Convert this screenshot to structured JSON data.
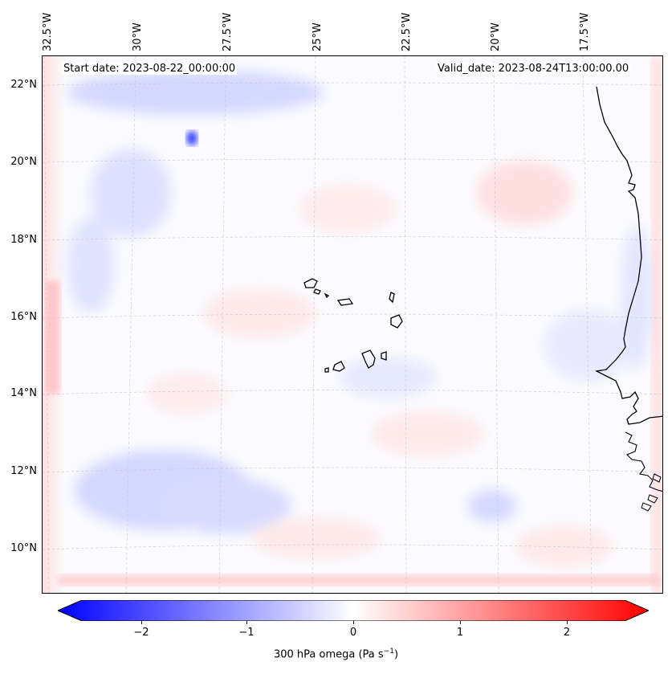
{
  "map": {
    "header_left": "Start date: 2023-08-22_00:00:00",
    "header_right": "Valid_date: 2023-08-24T13:00:00.00",
    "lon_labels": [
      "32.5°W",
      "30°W",
      "27.5°W",
      "25°W",
      "22.5°W",
      "20°W",
      "17.5°W"
    ],
    "lat_labels": [
      "22°N",
      "20°N",
      "18°N",
      "16°N",
      "14°N",
      "12°N",
      "10°N"
    ],
    "extent": {
      "lon_min": -32.9,
      "lon_max": -15.6,
      "lat_min": 8.9,
      "lat_max": 22.7
    },
    "colors": {
      "negative": "#0000ff",
      "zero": "#ffffff",
      "positive": "#ff0000",
      "coast": "#000000",
      "grid": "#c8c8c8"
    }
  },
  "colorbar": {
    "label_main": "300 hPa omega (Pa s",
    "label_exp": "−1",
    "label_end": ")",
    "ticks": [
      "−2",
      "−1",
      "0",
      "1",
      "2"
    ],
    "tick_values": [
      -2,
      -1,
      0,
      1,
      2
    ],
    "vmin": -2.5,
    "vmax": 2.5
  }
}
